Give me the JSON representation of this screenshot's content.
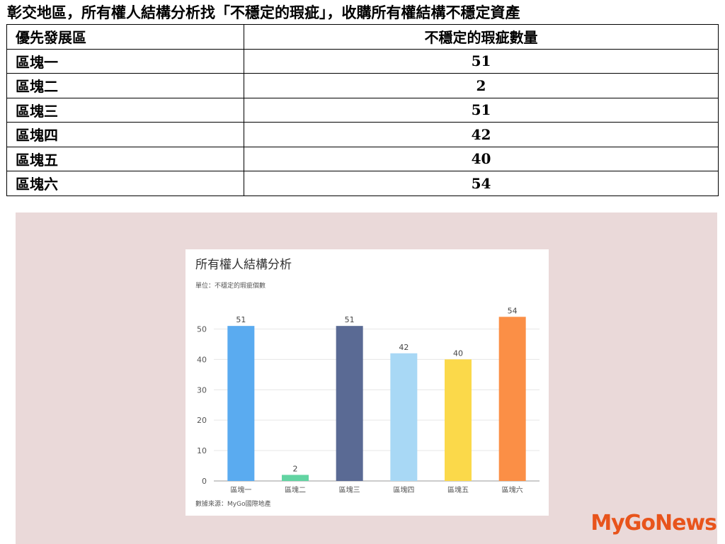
{
  "title": "彰交地區，所有權人結構分析找「不穩定的瑕疵」，收購所有權結構不穩定資產",
  "table": {
    "header": [
      "優先發展區",
      "不穩定的瑕疵數量"
    ],
    "rows": [
      [
        "區塊一",
        51
      ],
      [
        "區塊二",
        2
      ],
      [
        "區塊三",
        51
      ],
      [
        "區塊四",
        42
      ],
      [
        "區塊五",
        40
      ],
      [
        "區塊六",
        54
      ]
    ]
  },
  "chart_data": {
    "type": "bar",
    "title": "所有權人結構分析",
    "subtitle": "單位：不穩定的瑕疵個數",
    "source": "數據來源：MyGo國際地產",
    "categories": [
      "區塊一",
      "區塊二",
      "區塊三",
      "區塊四",
      "區塊五",
      "區塊六"
    ],
    "values": [
      51,
      2,
      51,
      42,
      40,
      54
    ],
    "colors": [
      "#5aabf0",
      "#62d4a2",
      "#5a6a94",
      "#a8d8f5",
      "#fbd94a",
      "#fb8f46"
    ],
    "ylim": [
      0,
      55
    ],
    "yticks": [
      0,
      10,
      20,
      30,
      40,
      50
    ],
    "grid": true
  },
  "logo": "MyGoNews"
}
